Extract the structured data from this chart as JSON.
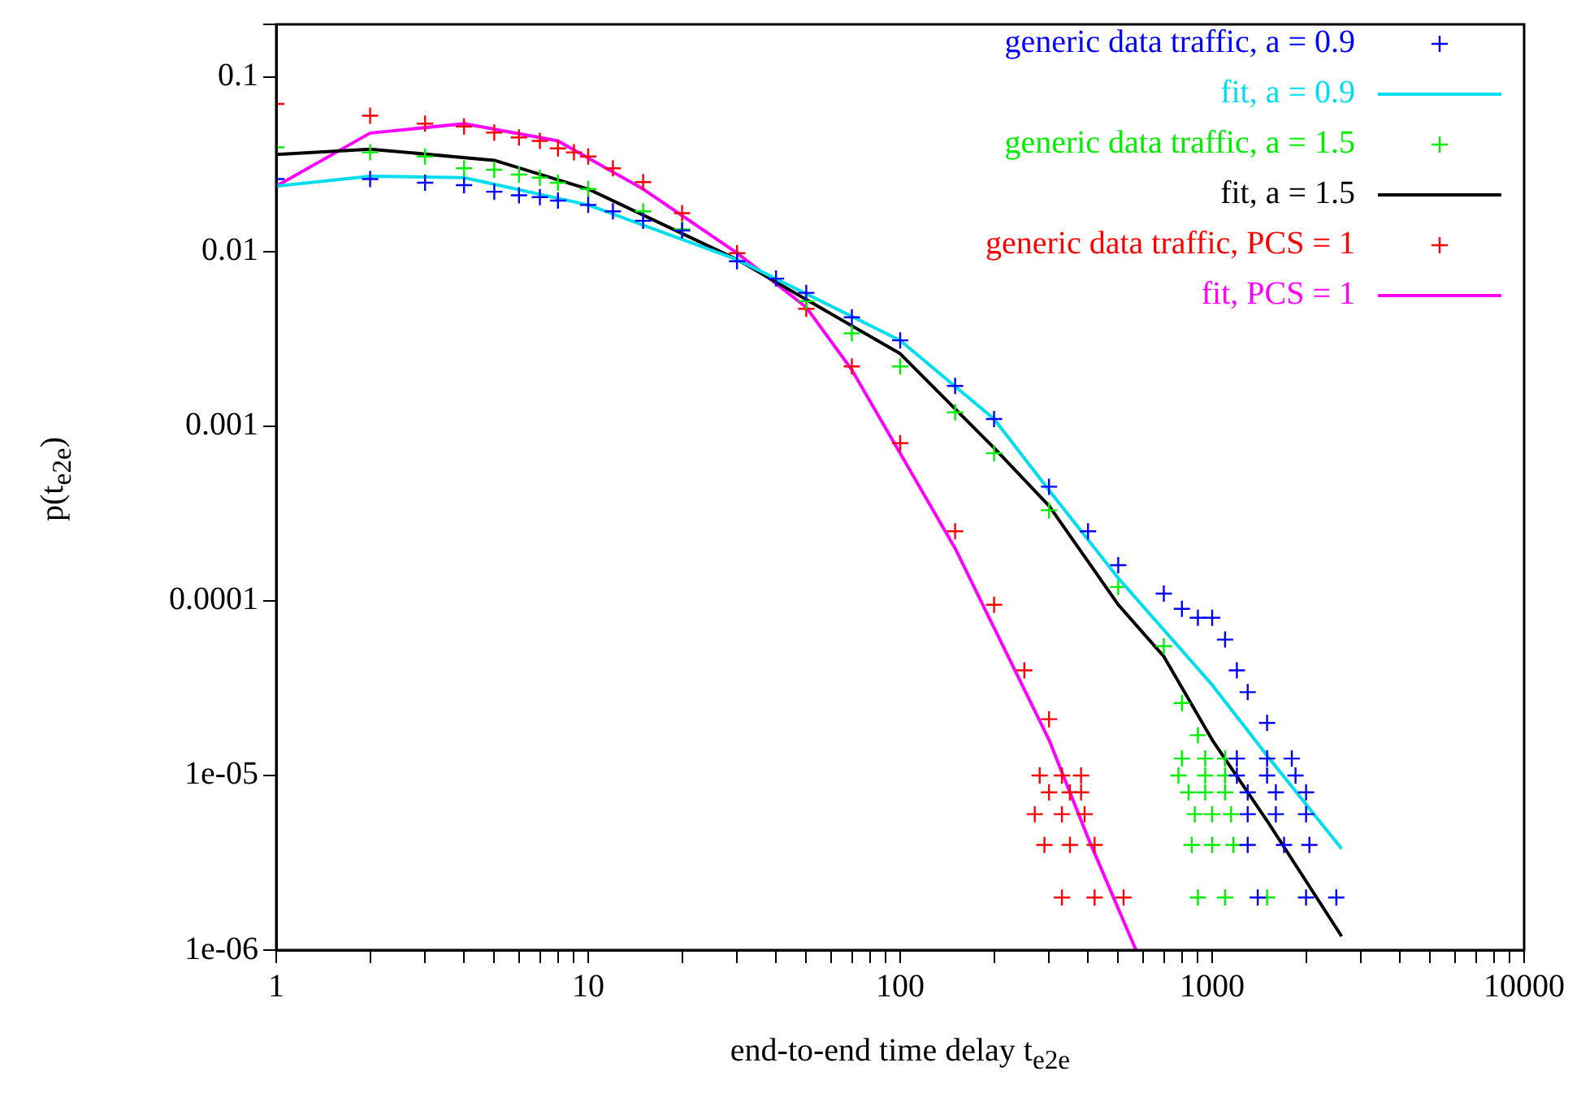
{
  "chart_data": {
    "type": "scatter",
    "xlabel": "end-to-end time delay t$_{e2e}$",
    "ylabel": "p(t$_{e2e}$)",
    "log": "xy",
    "grid": false,
    "legend": "top right",
    "xlim": [
      1,
      10000
    ],
    "ylim": [
      1e-06,
      0.2
    ],
    "xticks": [
      1,
      {
        "value": 2,
        "label": null
      },
      {
        "value": 3,
        "label": null
      },
      {
        "value": 4,
        "label": null
      },
      {
        "value": 5,
        "label": null
      },
      {
        "value": 6,
        "label": null
      },
      {
        "value": 7,
        "label": null
      },
      {
        "value": 8,
        "label": null
      },
      {
        "value": 9,
        "label": null
      },
      10,
      {
        "value": 20,
        "label": null
      },
      {
        "value": 30,
        "label": null
      },
      {
        "value": 40,
        "label": null
      },
      {
        "value": 50,
        "label": null
      },
      {
        "value": 60,
        "label": null
      },
      {
        "value": 70,
        "label": null
      },
      {
        "value": 80,
        "label": null
      },
      {
        "value": 90,
        "label": null
      },
      100,
      {
        "value": 200,
        "label": null
      },
      {
        "value": 300,
        "label": null
      },
      {
        "value": 400,
        "label": null
      },
      {
        "value": 500,
        "label": null
      },
      {
        "value": 600,
        "label": null
      },
      {
        "value": 700,
        "label": null
      },
      {
        "value": 800,
        "label": null
      },
      {
        "value": 900,
        "label": null
      },
      1000,
      {
        "value": 2000,
        "label": null
      },
      {
        "value": 3000,
        "label": null
      },
      {
        "value": 4000,
        "label": null
      },
      {
        "value": 5000,
        "label": null
      },
      {
        "value": 6000,
        "label": null
      },
      {
        "value": 7000,
        "label": null
      },
      {
        "value": 8000,
        "label": null
      },
      {
        "value": 9000,
        "label": null
      },
      10000
    ],
    "yticks": [
      {
        "value": 1e-06,
        "label": "1e-06"
      },
      {
        "value": 1e-05,
        "label": "1e-05"
      },
      0.0001,
      0.001,
      0.01,
      0.1,
      {
        "value": 0.2,
        "label": null
      }
    ],
    "series": [
      {
        "name": "generic data traffic, a = 0.9",
        "color": "#0000ff",
        "type": "scatter",
        "marker": "cross",
        "x": [
          1,
          2,
          3,
          4,
          5,
          6,
          7,
          8,
          10,
          12,
          15,
          20,
          30,
          40,
          50,
          70,
          100,
          150,
          200,
          300,
          400,
          500,
          700,
          800,
          900,
          1000,
          1100,
          1200,
          1300,
          1500,
          1200,
          1500,
          1800,
          1200,
          1500,
          1850,
          1300,
          1600,
          2000,
          1300,
          1600,
          2000,
          1300,
          1700,
          2050,
          1400,
          2000,
          2500
        ],
        "values": [
          0.026,
          0.026,
          0.0248,
          0.024,
          0.022,
          0.021,
          0.0205,
          0.0196,
          0.0185,
          0.017,
          0.015,
          0.0132,
          0.0088,
          0.007,
          0.0058,
          0.0042,
          0.0031,
          0.0017,
          0.0011,
          0.00045,
          0.00025,
          0.00016,
          0.00011,
          9e-05,
          8e-05,
          8e-05,
          6e-05,
          4e-05,
          3e-05,
          2e-05,
          1.25e-05,
          1.25e-05,
          1.25e-05,
          1e-05,
          1e-05,
          1e-05,
          8e-06,
          8e-06,
          8e-06,
          6e-06,
          6e-06,
          6e-06,
          4e-06,
          4e-06,
          4e-06,
          2e-06,
          2e-06,
          2e-06
        ]
      },
      {
        "name": "fit, a = 0.9",
        "color": "#00ddee",
        "type": "line",
        "marker": "none",
        "x": [
          1,
          2,
          4,
          10,
          30,
          100,
          200,
          300,
          500,
          1000,
          1500,
          2600
        ],
        "values": [
          0.0237,
          0.027,
          0.0265,
          0.0185,
          0.009,
          0.0031,
          0.0011,
          0.00043,
          0.000135,
          3.3e-05,
          1.3e-05,
          3.8e-06
        ]
      },
      {
        "name": "generic data traffic, a = 1.5",
        "color": "#00ee00",
        "type": "scatter",
        "marker": "cross",
        "x": [
          1,
          2,
          3,
          4,
          5,
          6,
          7,
          8,
          10,
          15,
          20,
          50,
          70,
          100,
          150,
          200,
          300,
          500,
          700,
          800,
          900,
          800,
          950,
          1100,
          780,
          950,
          1100,
          840,
          950,
          1100,
          880,
          1000,
          1150,
          860,
          1000,
          1170,
          900,
          1100,
          1500
        ],
        "values": [
          0.0395,
          0.037,
          0.035,
          0.03,
          0.0294,
          0.0276,
          0.0265,
          0.0248,
          0.0228,
          0.017,
          0.0134,
          0.0052,
          0.0034,
          0.0022,
          0.0012,
          0.0007,
          0.00033,
          0.00012,
          5.5e-05,
          2.6e-05,
          1.7e-05,
          1.25e-05,
          1.25e-05,
          1.25e-05,
          1e-05,
          1e-05,
          1e-05,
          8e-06,
          8e-06,
          8e-06,
          6e-06,
          6e-06,
          6e-06,
          4e-06,
          4e-06,
          4e-06,
          2e-06,
          2e-06,
          2e-06
        ]
      },
      {
        "name": "fit, a = 1.5",
        "color": "#000000",
        "type": "line",
        "marker": "none",
        "x": [
          1,
          2,
          5,
          10,
          30,
          100,
          200,
          300,
          500,
          700,
          1000,
          1500,
          2600
        ],
        "values": [
          0.036,
          0.0386,
          0.0333,
          0.0228,
          0.009,
          0.0026,
          0.00075,
          0.00035,
          9.5e-05,
          4.8e-05,
          1.6e-05,
          5.5e-06,
          1.2e-06
        ]
      },
      {
        "name": "generic data traffic, PCS = 1",
        "color": "#ff0000",
        "type": "scatter",
        "marker": "cross",
        "x": [
          1,
          2,
          3,
          4,
          5,
          6,
          7,
          8,
          9,
          10,
          12,
          15,
          20,
          30,
          50,
          70,
          100,
          150,
          200,
          250,
          300,
          280,
          330,
          380,
          300,
          350,
          380,
          270,
          330,
          390,
          290,
          350,
          420,
          330,
          420,
          520
        ],
        "values": [
          0.07,
          0.06,
          0.054,
          0.052,
          0.048,
          0.045,
          0.043,
          0.039,
          0.037,
          0.035,
          0.03,
          0.025,
          0.0166,
          0.0098,
          0.0047,
          0.0022,
          0.0008,
          0.00025,
          9.5e-05,
          4e-05,
          2.1e-05,
          1e-05,
          1e-05,
          1e-05,
          8e-06,
          8e-06,
          8e-06,
          6e-06,
          6e-06,
          6e-06,
          4e-06,
          4e-06,
          4e-06,
          2e-06,
          2e-06,
          2e-06
        ]
      },
      {
        "name": "fit, PCS = 1",
        "color": "#ff00ff",
        "type": "line",
        "marker": "none",
        "x": [
          1,
          2,
          4,
          8,
          15,
          30,
          50,
          70,
          100,
          150,
          200,
          300,
          400,
          570
        ],
        "values": [
          0.0237,
          0.0477,
          0.054,
          0.043,
          0.0228,
          0.0098,
          0.0048,
          0.0021,
          0.0007,
          0.0002,
          7e-05,
          1.6e-05,
          4.4e-06,
          1e-06
        ]
      }
    ]
  }
}
